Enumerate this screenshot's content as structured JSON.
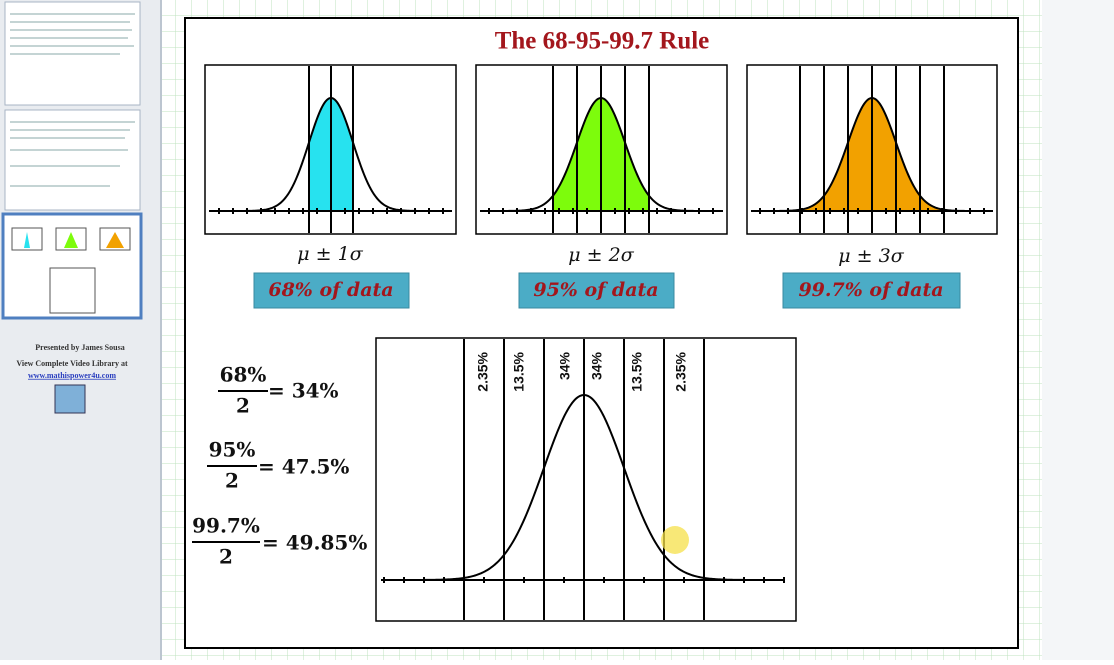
{
  "sidebar": {
    "footer": [
      "Presented by James Sousa",
      "View Complete Video Library at",
      "www.mathispower4u.com"
    ]
  },
  "slide": {
    "title": "The 68-95-99.7 Rule",
    "panels": [
      {
        "label": "μ ± 1σ",
        "caption": "68% of data"
      },
      {
        "label": "μ ± 2σ",
        "caption": "95% of data"
      },
      {
        "label": "μ ± 3σ",
        "caption": "99.7% of data"
      }
    ],
    "bottom_graph": {
      "region_labels": [
        "2.35%",
        "13.5%",
        "34%",
        "34%",
        "13.5%",
        "2.35%"
      ]
    },
    "equations": [
      {
        "numerator": "68%",
        "denominator": "2",
        "result": "= 34%"
      },
      {
        "numerator": "95%",
        "denominator": "2",
        "result": "= 47.5%"
      },
      {
        "numerator": "99.7%",
        "denominator": "2",
        "result": "= 49.85%"
      }
    ]
  }
}
